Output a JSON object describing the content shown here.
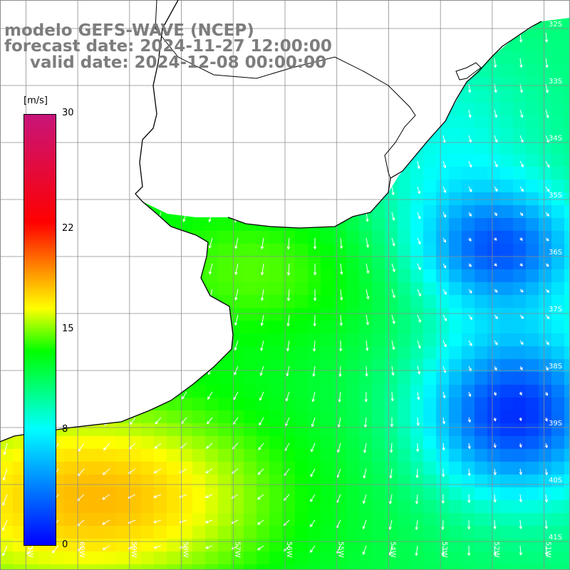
{
  "title": {
    "line1": "modelo GEFS-WAVE (NCEP)",
    "line2": "forecast date: 2024-11-27 12:00:00",
    "line3": "valid date: 2024-12-08 00:00:00"
  },
  "colorbar": {
    "unit": "[m/s]",
    "ticks": [
      {
        "value": 30,
        "label": "30"
      },
      {
        "value": 22,
        "label": "22"
      },
      {
        "value": 15,
        "label": "15"
      },
      {
        "value": 8,
        "label": "8"
      },
      {
        "value": 0,
        "label": "0"
      }
    ],
    "range": [
      0,
      30
    ]
  },
  "map": {
    "lon_range": [
      -61.5,
      -50.5
    ],
    "lat_range": [
      -41.5,
      -31.5
    ],
    "lat_labels": [
      "32S",
      "33S",
      "34S",
      "35S",
      "36S",
      "37S",
      "38S",
      "39S",
      "40S",
      "41S"
    ],
    "lon_labels": [
      "61W",
      "60W",
      "59W",
      "58W",
      "57W",
      "56W",
      "55W",
      "54W",
      "53W",
      "52W",
      "51W"
    ],
    "land_color": "#ffffff",
    "grid_color": "#8c8c8c",
    "coast_color": "#000000"
  },
  "colors": {
    "title_text": "#7d7d7d",
    "arrow": "#ffffff",
    "scale": [
      "#0000ff",
      "#00ffff",
      "#00ff00",
      "#ffff00",
      "#ff8000",
      "#ff0000",
      "#c8147a"
    ]
  }
}
